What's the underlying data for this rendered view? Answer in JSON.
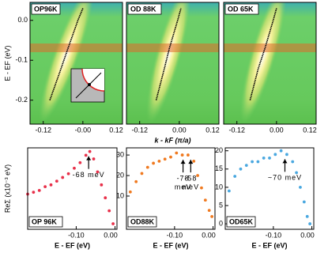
{
  "chart_data": [
    {
      "type": "image",
      "label": "OP96K",
      "ylabel": "E - EF (eV)",
      "xlim": [
        -0.16,
        0.12
      ],
      "ylim": [
        -0.26,
        0.045
      ],
      "xticks": [
        -0.12,
        {
          "value": 0,
          "label": "-0.00"
        },
        0.12
      ],
      "yticks": [
        {
          "value": 0,
          "label": "0.0"
        },
        -0.1,
        -0.2
      ],
      "x": [
        -0.1,
        -0.07,
        -0.045,
        -0.015,
        0.0
      ],
      "values": [
        -0.2,
        -0.13,
        -0.07,
        0.0,
        0.03
      ]
    },
    {
      "type": "image",
      "label": "OD 88K",
      "xlabel": "k - kF (π/a)",
      "xlim": [
        -0.16,
        0.12
      ],
      "ylim": [
        -0.26,
        0.045
      ],
      "xticks": [
        -0.12,
        {
          "value": 0,
          "label": "0.00"
        },
        0.12
      ],
      "x": [
        -0.07,
        -0.045,
        -0.03,
        -0.005,
        0.005
      ],
      "values": [
        -0.2,
        -0.12,
        -0.07,
        0.0,
        0.03
      ]
    },
    {
      "type": "image",
      "label": "OD 65K",
      "xlim": [
        -0.16,
        0.12
      ],
      "ylim": [
        -0.26,
        0.045
      ],
      "xticks": [
        -0.12,
        {
          "value": 0,
          "label": "0.00"
        },
        0.12
      ],
      "x": [
        -0.08,
        -0.055,
        -0.035,
        -0.01,
        0.0
      ],
      "values": [
        -0.2,
        -0.12,
        -0.07,
        0.0,
        0.03
      ]
    },
    {
      "type": "scatter",
      "label": "OP 96K",
      "ylabel": "ReΣ (x10⁻³ eV)",
      "xlabel": "E - EF (eV)",
      "color": "#e8304a",
      "xlim": [
        -0.225,
        0.005
      ],
      "ylim": [
        0,
        44
      ],
      "xticks": [
        {
          "value": -0.1,
          "label": "-0.10"
        },
        {
          "value": 0,
          "label": "0.00"
        }
      ],
      "x": [
        -0.225,
        -0.21,
        -0.195,
        -0.18,
        -0.165,
        -0.15,
        -0.135,
        -0.12,
        -0.105,
        -0.09,
        -0.075,
        -0.065,
        -0.055,
        -0.045,
        -0.035,
        -0.025,
        -0.015,
        -0.005
      ],
      "values": [
        19,
        20,
        21,
        23,
        24,
        26,
        28,
        30,
        33,
        36,
        40,
        42,
        38,
        31,
        24,
        17,
        10,
        3
      ],
      "annotations": [
        {
          "text": [
            "-68 meV"
          ],
          "x": -0.068
        }
      ]
    },
    {
      "type": "scatter",
      "label": "OD88K",
      "xlabel": "E - EF (eV)",
      "color": "#f07a20",
      "xlim": [
        -0.225,
        0.005
      ],
      "ylim": [
        -6.2,
        33.5
      ],
      "yticks": [
        10,
        20,
        30
      ],
      "xticks": [
        {
          "value": -0.1,
          "label": "-0.10"
        },
        {
          "value": 0,
          "label": "0.00"
        }
      ],
      "x": [
        -0.215,
        -0.2,
        -0.185,
        -0.17,
        -0.155,
        -0.14,
        -0.125,
        -0.11,
        -0.095,
        -0.08,
        -0.065,
        -0.05,
        -0.04,
        -0.03,
        -0.02,
        -0.01,
        -0.003
      ],
      "values": [
        12,
        17,
        21,
        24,
        26,
        27,
        28,
        29,
        31,
        30,
        30,
        27,
        20,
        14,
        8,
        3,
        0
      ],
      "annotations": [
        {
          "text": [
            "-78",
            "meV"
          ],
          "x": -0.078
        },
        {
          "text": [
            "-58",
            "meV"
          ],
          "x": -0.058
        }
      ]
    },
    {
      "type": "scatter",
      "label": "OD65K",
      "xlabel": "E - EF (eV)",
      "color": "#4aa8e0",
      "xlim": [
        -0.225,
        0.005
      ],
      "ylim": [
        -1.5,
        20.8
      ],
      "yticks": [
        0,
        5,
        10,
        15,
        20
      ],
      "xticks": [
        {
          "value": -0.1,
          "label": "-0.10"
        },
        {
          "value": 0,
          "label": "0.00"
        }
      ],
      "x": [
        -0.215,
        -0.2,
        -0.185,
        -0.17,
        -0.155,
        -0.14,
        -0.125,
        -0.11,
        -0.095,
        -0.08,
        -0.065,
        -0.05,
        -0.04,
        -0.03,
        -0.02,
        -0.012,
        -0.005
      ],
      "values": [
        9,
        13,
        15,
        16,
        17,
        17,
        18,
        18,
        19,
        20,
        19,
        17,
        14,
        10,
        6,
        2,
        0
      ],
      "annotations": [
        {
          "text": [
            "~70 meV"
          ],
          "x": -0.07
        }
      ]
    }
  ]
}
